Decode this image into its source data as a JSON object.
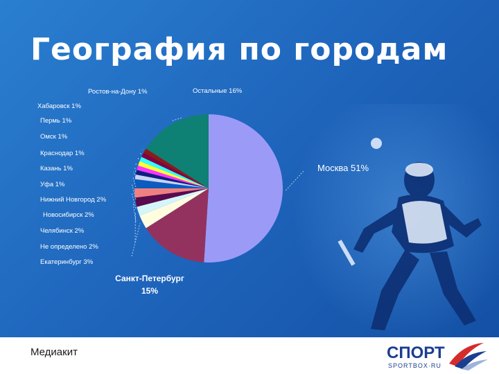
{
  "slide": {
    "title": "География по городам",
    "footer_label": "Медиакит",
    "logo_text": "СПОРТ",
    "logo_subtext": "SPORTBOX·RU"
  },
  "colors": {
    "background": "#1f66bd",
    "footer": "#ffffff",
    "logo_red": "#d62b2b",
    "logo_blue": "#1b3f8f"
  },
  "chart_data": {
    "type": "pie",
    "title": "",
    "slices": [
      {
        "label": "Москва 51%",
        "value": 51,
        "color": "#9b9bf7"
      },
      {
        "label": "Санкт-Петербург 15%",
        "value": 15,
        "color": "#94325f"
      },
      {
        "label": "Екатеринбург 3%",
        "value": 3,
        "color": "#fffde0"
      },
      {
        "label": "Не определено 2%",
        "value": 2,
        "color": "#d4f6fb"
      },
      {
        "label": "Челябинск 2%",
        "value": 2,
        "color": "#5a0a4f"
      },
      {
        "label": "Новосибирск 2%",
        "value": 2,
        "color": "#f08080"
      },
      {
        "label": "Нижний Новгород 2%",
        "value": 2,
        "color": "#0c5cbf"
      },
      {
        "label": "Уфа 1%",
        "value": 1,
        "color": "#cbd3f2"
      },
      {
        "label": "Казань 1%",
        "value": 1,
        "color": "#0e1f80"
      },
      {
        "label": "Краснодар 1%",
        "value": 1,
        "color": "#ff33ff"
      },
      {
        "label": "Омск 1%",
        "value": 1,
        "color": "#ffff33"
      },
      {
        "label": "Пермь 1%",
        "value": 1,
        "color": "#33ffff"
      },
      {
        "label": "Хабаровск 1%",
        "value": 1,
        "color": "#800040"
      },
      {
        "label": "Ростов-на-Дону 1%",
        "value": 1,
        "color": "#8b1a1a"
      },
      {
        "label": "Остальные 16%",
        "value": 16,
        "color": "#0f8074"
      }
    ]
  }
}
